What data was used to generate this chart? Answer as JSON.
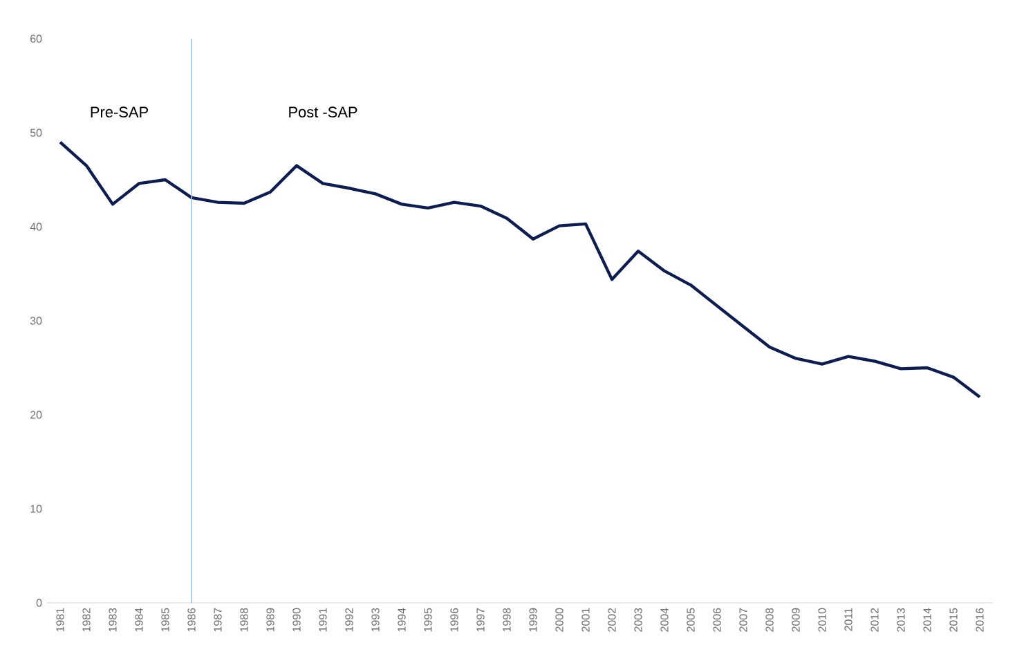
{
  "chart_data": {
    "type": "line",
    "categories": [
      "1981",
      "1982",
      "1983",
      "1984",
      "1985",
      "1986",
      "1987",
      "1988",
      "1989",
      "1990",
      "1991",
      "1992",
      "1993",
      "1994",
      "1995",
      "1996",
      "1997",
      "1998",
      "1999",
      "2000",
      "2001",
      "2002",
      "2003",
      "2004",
      "2005",
      "2006",
      "2007",
      "2008",
      "2009",
      "2010",
      "2011",
      "2012",
      "2013",
      "2014",
      "2015",
      "2016"
    ],
    "series": [
      {
        "color": "#0f1d4e",
        "values": [
          49.0,
          46.5,
          42.4,
          44.6,
          45.0,
          43.1,
          42.6,
          42.5,
          43.7,
          46.5,
          44.6,
          44.1,
          43.5,
          42.4,
          42.0,
          42.6,
          42.2,
          40.9,
          38.7,
          40.1,
          40.3,
          34.4,
          37.4,
          35.3,
          33.8,
          31.6,
          29.4,
          27.2,
          26.0,
          25.4,
          26.2,
          25.7,
          24.9,
          25.0,
          24.0,
          21.9
        ]
      }
    ],
    "ylim": [
      0,
      60
    ],
    "yticks": [
      0,
      10,
      20,
      30,
      40,
      50,
      60
    ],
    "ref_lines": [
      {
        "axis": "x",
        "value": "1986",
        "color": "#9dc3e6"
      }
    ],
    "annotations": [
      "Pre-SAP",
      "Post -SAP"
    ],
    "grid": false,
    "marker": "none",
    "line_style": "solid"
  }
}
